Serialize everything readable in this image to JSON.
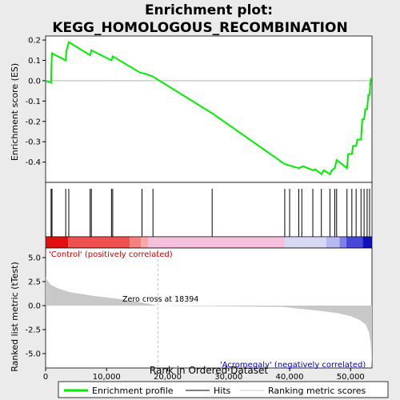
{
  "title_line1": "Enrichment plot:",
  "title_line2": "KEGG_HOMOLOGOUS_RECOMBINATION",
  "colors": {
    "es_line": "#00ee00",
    "hits": "#000000",
    "metric_fill": "#c8c8c8",
    "pos_label": "#cc0000",
    "neg_label": "#0000cc",
    "zero_line": "#aaaaaa"
  },
  "chart_data": [
    {
      "type": "line",
      "name": "enrichment-profile",
      "ylabel": "Enrichment score (ES)",
      "ylim": [
        -0.5,
        0.22
      ],
      "yticks": [
        0.2,
        0.1,
        0.0,
        -0.1,
        -0.2,
        -0.3,
        -0.4
      ],
      "ytick_labels": [
        "0.2",
        "0.1",
        "0.0",
        "-0.1",
        "-0.2",
        "-0.3",
        "-0.4"
      ],
      "xlim": [
        0,
        53500
      ],
      "points": [
        [
          0,
          0.0
        ],
        [
          900,
          -0.01
        ],
        [
          950,
          0.06
        ],
        [
          1050,
          0.135
        ],
        [
          3300,
          0.1
        ],
        [
          3400,
          0.145
        ],
        [
          3800,
          0.19
        ],
        [
          7300,
          0.125
        ],
        [
          7500,
          0.15
        ],
        [
          10800,
          0.1
        ],
        [
          11000,
          0.12
        ],
        [
          15500,
          0.04
        ],
        [
          16300,
          0.035
        ],
        [
          17600,
          0.02
        ],
        [
          27300,
          -0.16
        ],
        [
          39200,
          -0.41
        ],
        [
          41500,
          -0.43
        ],
        [
          42200,
          -0.42
        ],
        [
          43800,
          -0.44
        ],
        [
          44200,
          -0.435
        ],
        [
          45200,
          -0.46
        ],
        [
          45600,
          -0.44
        ],
        [
          46600,
          -0.46
        ],
        [
          46900,
          -0.44
        ],
        [
          47400,
          -0.43
        ],
        [
          47700,
          -0.39
        ],
        [
          49400,
          -0.43
        ],
        [
          49600,
          -0.36
        ],
        [
          50200,
          -0.36
        ],
        [
          50400,
          -0.32
        ],
        [
          50900,
          -0.32
        ],
        [
          51100,
          -0.29
        ],
        [
          51700,
          -0.29
        ],
        [
          51900,
          -0.19
        ],
        [
          52200,
          -0.19
        ],
        [
          52400,
          -0.14
        ],
        [
          52700,
          -0.14
        ],
        [
          52900,
          -0.07
        ],
        [
          53100,
          -0.07
        ],
        [
          53300,
          0.01
        ],
        [
          53500,
          0.01
        ]
      ],
      "hits": [
        900,
        1050,
        3300,
        3800,
        7300,
        7500,
        10800,
        11000,
        15800,
        17600,
        27300,
        39200,
        40000,
        41500,
        42000,
        43800,
        45200,
        46600,
        47400,
        47700,
        49400,
        50200,
        50900,
        51700,
        52200,
        52700,
        53100
      ]
    },
    {
      "type": "area",
      "name": "ranked-list-metric",
      "ylabel": "Ranked list metric (tTest)",
      "xlabel": "Rank in Ordered Dataset",
      "ylim": [
        -6.5,
        6.0
      ],
      "yticks": [
        5.0,
        2.5,
        0.0,
        -2.5,
        -5.0
      ],
      "ytick_labels": [
        "5.0",
        "2.5",
        "0.0",
        "-2.5",
        "-5.0"
      ],
      "xlim": [
        0,
        53500
      ],
      "xticks": [
        0,
        10000,
        20000,
        30000,
        40000,
        50000
      ],
      "xtick_labels": [
        "0",
        "10,000",
        "20,000",
        "30,000",
        "40,000",
        "50,000"
      ],
      "points": [
        [
          0,
          3.0
        ],
        [
          300,
          2.6
        ],
        [
          800,
          2.2
        ],
        [
          2000,
          1.8
        ],
        [
          4000,
          1.4
        ],
        [
          8000,
          1.0
        ],
        [
          12000,
          0.7
        ],
        [
          16000,
          0.3
        ],
        [
          18394,
          0.0
        ],
        [
          25000,
          -0.05
        ],
        [
          39000,
          -0.15
        ],
        [
          42000,
          -0.35
        ],
        [
          45000,
          -0.55
        ],
        [
          48000,
          -0.8
        ],
        [
          50000,
          -1.1
        ],
        [
          51500,
          -1.5
        ],
        [
          52500,
          -2.0
        ],
        [
          53000,
          -2.8
        ],
        [
          53300,
          -4.0
        ],
        [
          53500,
          -6.3
        ]
      ],
      "zero_cross": 18394,
      "zero_cross_label": "Zero cross at 18394",
      "pos_label": "'Control' (positively correlated)",
      "neg_label": "'Acromegaly' (negatively correlated)"
    }
  ],
  "legend": {
    "items": [
      {
        "label": "Enrichment profile",
        "color": "#00ee00",
        "kind": "thick-line"
      },
      {
        "label": "Hits",
        "color": "#000000",
        "kind": "line"
      },
      {
        "label": "Ranking metric scores",
        "color": "#c8c8c8",
        "kind": "line"
      }
    ]
  }
}
